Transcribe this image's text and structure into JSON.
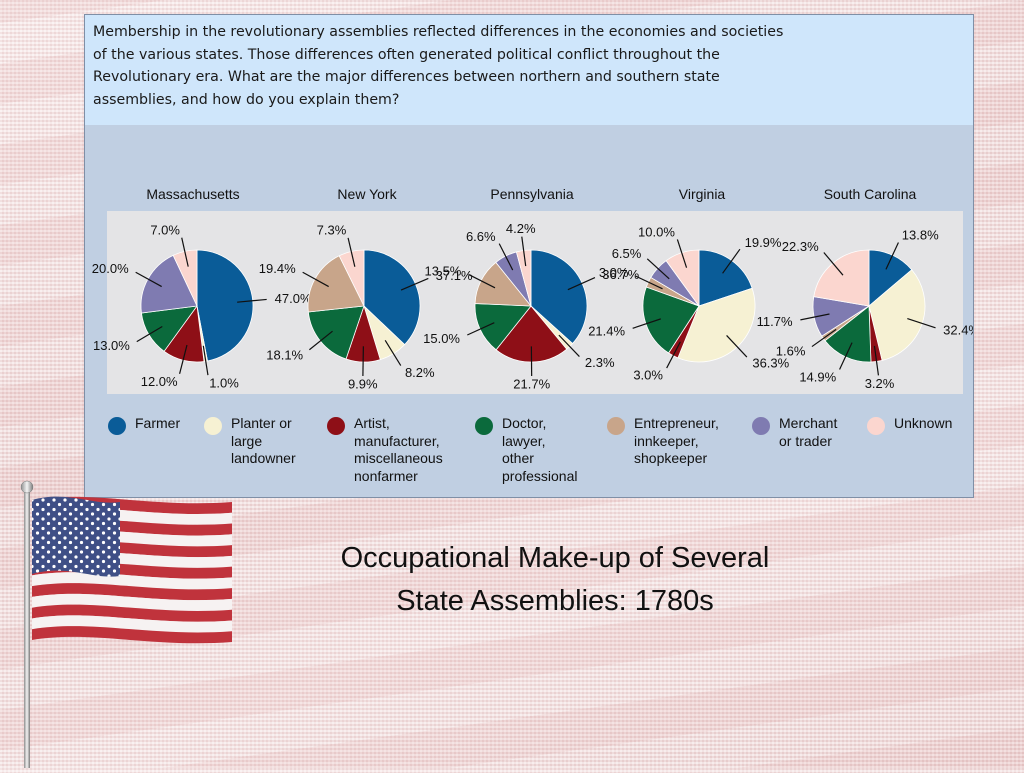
{
  "caption": "Membership in the revolutionary assemblies reflected differences in the economies and societies of the various states. Those differences often generated political conflict throughout the Revolutionary era. What are the major differences between northern and southern state assemblies, and how do you explain them?",
  "slide_title_line1": "Occupational Make-up of Several",
  "slide_title_line2": "State Assemblies: 1780s",
  "colors": {
    "farmer": "#0a5c98",
    "planter": "#f6f1d3",
    "artist": "#8e0f17",
    "doctor": "#0b6a3c",
    "entrepreneur": "#c8a58a",
    "merchant": "#7f7bb1",
    "unknown": "#fbd6cf"
  },
  "legend": [
    {
      "key": "farmer",
      "label": "Farmer"
    },
    {
      "key": "planter",
      "label": "Planter or\nlarge\nlandowner"
    },
    {
      "key": "artist",
      "label": "Artist,\nmanufacturer,\nmiscellaneous\nnonfarmer"
    },
    {
      "key": "doctor",
      "label": "Doctor,\nlawyer,\nother\nprofessional"
    },
    {
      "key": "entrepreneur",
      "label": "Entrepreneur,\ninnkeeper,\nshopkeeper"
    },
    {
      "key": "merchant",
      "label": "Merchant\nor trader"
    },
    {
      "key": "unknown",
      "label": "Unknown"
    }
  ],
  "chart_data": [
    {
      "type": "pie",
      "title": "Massachusetts",
      "slices": [
        {
          "category": "farmer",
          "label": "47.0%",
          "value": 47.0
        },
        {
          "category": "planter",
          "label": "1.0%",
          "value": 1.0
        },
        {
          "category": "artist",
          "label": "12.0%",
          "value": 12.0
        },
        {
          "category": "doctor",
          "label": "13.0%",
          "value": 13.0
        },
        {
          "category": "merchant",
          "label": "20.0%",
          "value": 20.0
        },
        {
          "category": "unknown",
          "label": "7.0%",
          "value": 7.0
        }
      ]
    },
    {
      "type": "pie",
      "title": "New York",
      "slices": [
        {
          "category": "farmer",
          "label": "37.1%",
          "value": 37.1
        },
        {
          "category": "planter",
          "label": "8.2%",
          "value": 8.2
        },
        {
          "category": "artist",
          "label": "9.9%",
          "value": 9.9
        },
        {
          "category": "doctor",
          "label": "18.1%",
          "value": 18.1
        },
        {
          "category": "entrepreneur",
          "label": "19.4%",
          "value": 19.4
        },
        {
          "category": "unknown",
          "label": "7.3%",
          "value": 7.3
        }
      ]
    },
    {
      "type": "pie",
      "title": "Pennsylvania",
      "slices": [
        {
          "category": "farmer",
          "label": "36.7%",
          "value": 36.7
        },
        {
          "category": "planter",
          "label": "2.3%",
          "value": 2.3
        },
        {
          "category": "artist",
          "label": "21.7%",
          "value": 21.7
        },
        {
          "category": "doctor",
          "label": "15.0%",
          "value": 15.0
        },
        {
          "category": "entrepreneur",
          "label": "13.5%",
          "value": 13.5
        },
        {
          "category": "merchant",
          "label": "6.6%",
          "value": 6.6
        },
        {
          "category": "unknown",
          "label": "4.2%",
          "value": 4.2
        }
      ]
    },
    {
      "type": "pie",
      "title": "Virginia",
      "slices": [
        {
          "category": "farmer",
          "label": "19.9%",
          "value": 19.9
        },
        {
          "category": "planter",
          "label": "36.3%",
          "value": 36.3
        },
        {
          "category": "artist",
          "label": "3.0%",
          "value": 3.0
        },
        {
          "category": "doctor",
          "label": "21.4%",
          "value": 21.4
        },
        {
          "category": "entrepreneur",
          "label": "3.0%",
          "value": 3.0
        },
        {
          "category": "merchant",
          "label": "6.5%",
          "value": 6.5
        },
        {
          "category": "unknown",
          "label": "10.0%",
          "value": 10.0
        }
      ]
    },
    {
      "type": "pie",
      "title": "South Carolina",
      "slices": [
        {
          "category": "farmer",
          "label": "13.8%",
          "value": 13.8
        },
        {
          "category": "planter",
          "label": "32.4%",
          "value": 32.4
        },
        {
          "category": "artist",
          "label": "3.2%",
          "value": 3.2
        },
        {
          "category": "doctor",
          "label": "14.9%",
          "value": 14.9
        },
        {
          "category": "entrepreneur",
          "label": "1.6%",
          "value": 1.6
        },
        {
          "category": "merchant",
          "label": "11.7%",
          "value": 11.7
        },
        {
          "category": "unknown",
          "label": "22.3%",
          "value": 22.3
        }
      ]
    }
  ]
}
